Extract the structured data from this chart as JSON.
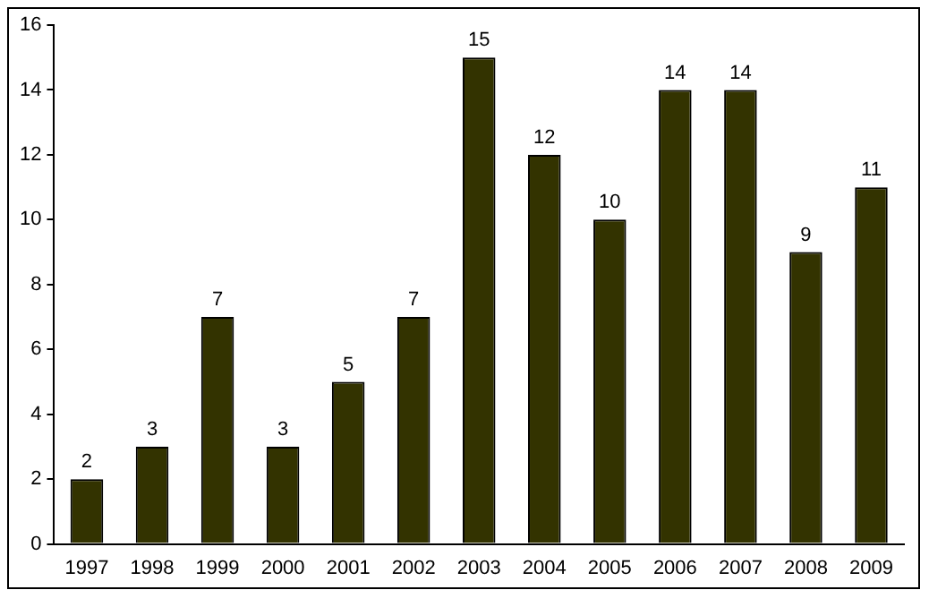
{
  "chart_data": {
    "type": "bar",
    "categories": [
      "1997",
      "1998",
      "1999",
      "2000",
      "2001",
      "2002",
      "2003",
      "2004",
      "2005",
      "2006",
      "2007",
      "2008",
      "2009"
    ],
    "values": [
      2,
      3,
      7,
      3,
      5,
      7,
      15,
      12,
      10,
      14,
      14,
      9,
      11
    ],
    "color": "#333300",
    "ylim": [
      0,
      16
    ],
    "yticks": [
      0,
      2,
      4,
      6,
      8,
      10,
      12,
      14,
      16
    ],
    "grid": false,
    "legend": false,
    "data_labels": true
  }
}
